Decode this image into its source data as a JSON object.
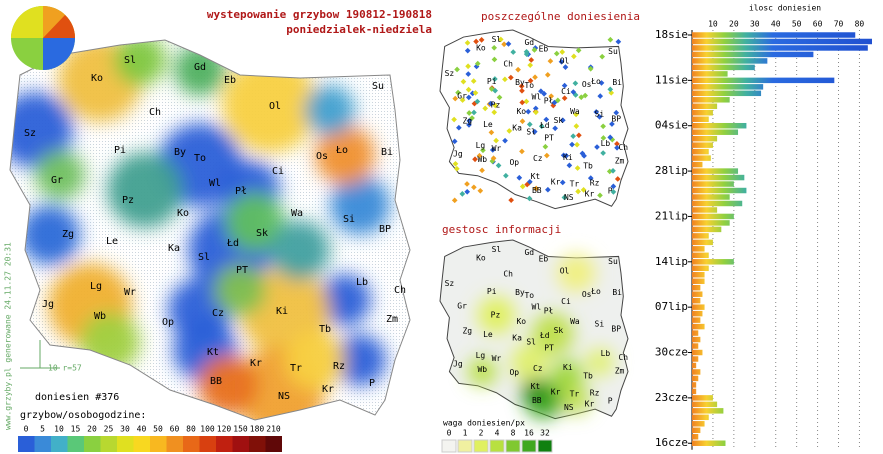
{
  "header": {
    "title": "wystepowanie grzybow 190812-190818",
    "subtitle": "poniedzialek-niedziela"
  },
  "maps": {
    "points_title": "poszczególne doniesienia",
    "density_title": "gestosc informacji"
  },
  "info": {
    "reports": "doniesien #376",
    "scale_note": "10 r=57",
    "footer": "www.grzyby.pl generowane 24.11.27 20:31"
  },
  "cities": [
    "Sl",
    "Gd",
    "Eb",
    "Su",
    "Ko",
    "Ol",
    "Ch",
    "Sz",
    "Pi",
    "By",
    "To",
    "Ło",
    "Os",
    "Bi",
    "Gr",
    "Wl",
    "Ci",
    "Pł",
    "Pz",
    "Ko",
    "Wa",
    "Si",
    "Zg",
    "Le",
    "Ka",
    "Łd",
    "Sk",
    "BP",
    "Sl",
    "PT",
    "Jg",
    "Lg",
    "Wr",
    "Lb",
    "Ch",
    "Wb",
    "Op",
    "Cz",
    "Ki",
    "Zm",
    "Tb",
    "Kt",
    "Kr",
    "Tr",
    "Rz",
    "P",
    "BB",
    "NS",
    "Kr"
  ],
  "legend": {
    "title": "grzybow/osobogodzine:",
    "values": [
      0,
      5,
      10,
      15,
      20,
      25,
      30,
      40,
      50,
      60,
      80,
      100,
      120,
      150,
      180,
      210
    ],
    "colors": [
      "#2a5fd8",
      "#3a8ad8",
      "#42b0c8",
      "#5ac878",
      "#8ad040",
      "#b8d830",
      "#e0e020",
      "#f8d820",
      "#f8b820",
      "#f09020",
      "#e86818",
      "#d84010",
      "#c02010",
      "#a01010",
      "#801008",
      "#600808"
    ]
  },
  "density_legend": {
    "title": "waga doniesien/px",
    "values": [
      0,
      1,
      2,
      4,
      8,
      16,
      32
    ],
    "colors": [
      "#f4f4f0",
      "#f0f0a0",
      "#e0f060",
      "#b8e040",
      "#80c830",
      "#40a820",
      "#108010"
    ]
  },
  "chart_data": {
    "type": "bar",
    "orientation": "horizontal",
    "title": "ilosc doniesien",
    "categories": [
      "18sie",
      null,
      null,
      null,
      null,
      null,
      null,
      "11sie",
      null,
      null,
      null,
      null,
      null,
      null,
      "04sie",
      null,
      null,
      null,
      null,
      null,
      null,
      "28lip",
      null,
      null,
      null,
      null,
      null,
      null,
      "21lip",
      null,
      null,
      null,
      null,
      null,
      null,
      "14lip",
      null,
      null,
      null,
      null,
      null,
      null,
      "07lip",
      null,
      null,
      null,
      null,
      null,
      null,
      "30cze",
      null,
      null,
      null,
      null,
      null,
      null,
      "23cze",
      null,
      null,
      null,
      null,
      null,
      null,
      "16cze"
    ],
    "values": [
      78,
      86,
      84,
      58,
      36,
      30,
      17,
      68,
      34,
      33,
      18,
      12,
      10,
      8,
      26,
      22,
      12,
      10,
      8,
      9,
      5,
      22,
      25,
      20,
      26,
      18,
      24,
      12,
      20,
      18,
      14,
      8,
      10,
      6,
      8,
      20,
      8,
      6,
      6,
      4,
      5,
      4,
      6,
      5,
      4,
      6,
      3,
      4,
      3,
      5,
      3,
      2,
      4,
      3,
      2,
      2,
      10,
      12,
      15,
      8,
      6,
      4,
      3,
      16
    ],
    "xlim": [
      0,
      86
    ],
    "xticks": [
      10,
      20,
      30,
      40,
      50,
      60,
      70,
      80
    ],
    "grid": true
  }
}
